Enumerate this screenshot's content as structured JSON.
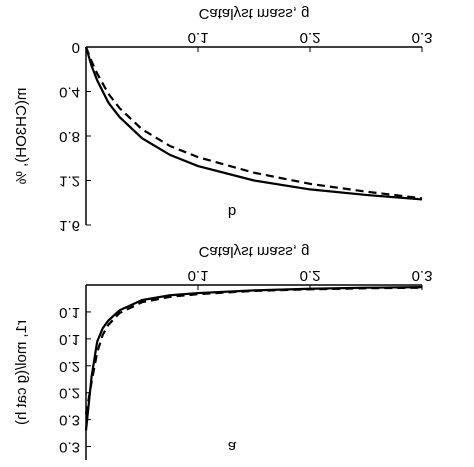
{
  "chart_data": [
    {
      "type": "line",
      "panel_label": "b",
      "xlabel": "Catalyst mass, g",
      "ylabel": "m(CH3OH), %",
      "xlim": [
        0,
        0.3
      ],
      "xticks": [
        0.1,
        0.2,
        0.3
      ],
      "ylim": [
        0,
        1.6
      ],
      "yticks": [
        0,
        0.4,
        0.8,
        1.2,
        1.6
      ],
      "x": [
        0,
        0.005,
        0.01,
        0.02,
        0.03,
        0.05,
        0.075,
        0.1,
        0.15,
        0.2,
        0.25,
        0.3
      ],
      "series": [
        {
          "color": "#000",
          "dash": false,
          "values": [
            0,
            0.17,
            0.3,
            0.5,
            0.63,
            0.82,
            0.97,
            1.07,
            1.2,
            1.28,
            1.33,
            1.37
          ]
        },
        {
          "color": "#000",
          "dash": true,
          "values": [
            0,
            0.13,
            0.24,
            0.42,
            0.55,
            0.74,
            0.89,
            0.99,
            1.13,
            1.23,
            1.3,
            1.36
          ]
        }
      ]
    },
    {
      "type": "line",
      "panel_label": "a",
      "xlabel": "Catalyst mass, g",
      "ylabel": "r1, mol/(g cat h)",
      "xlim": [
        0,
        0.3
      ],
      "xticks": [
        0.1,
        0.2,
        0.3
      ],
      "ylim": [
        0,
        0.325
      ],
      "yticks": [
        {
          "value": 0.05,
          "label": "0.1"
        },
        {
          "value": 0.1,
          "label": "0.1"
        },
        {
          "value": 0.15,
          "label": "0.2"
        },
        {
          "value": 0.2,
          "label": "0.2"
        },
        {
          "value": 0.25,
          "label": "0.3"
        },
        {
          "value": 0.3,
          "label": "0.3"
        }
      ],
      "x": [
        0,
        0.005,
        0.01,
        0.015,
        0.02,
        0.03,
        0.05,
        0.075,
        0.1,
        0.15,
        0.2,
        0.25,
        0.3
      ],
      "series": [
        {
          "color": "#000",
          "dash": false,
          "values": [
            0.27,
            0.17,
            0.105,
            0.08,
            0.066,
            0.047,
            0.028,
            0.019,
            0.015,
            0.01,
            0.007,
            0.005,
            0.004
          ]
        },
        {
          "color": "#000",
          "dash": true,
          "values": [
            0.24,
            0.18,
            0.125,
            0.092,
            0.074,
            0.052,
            0.032,
            0.022,
            0.017,
            0.011,
            0.008,
            0.006,
            0.005
          ]
        }
      ]
    }
  ]
}
